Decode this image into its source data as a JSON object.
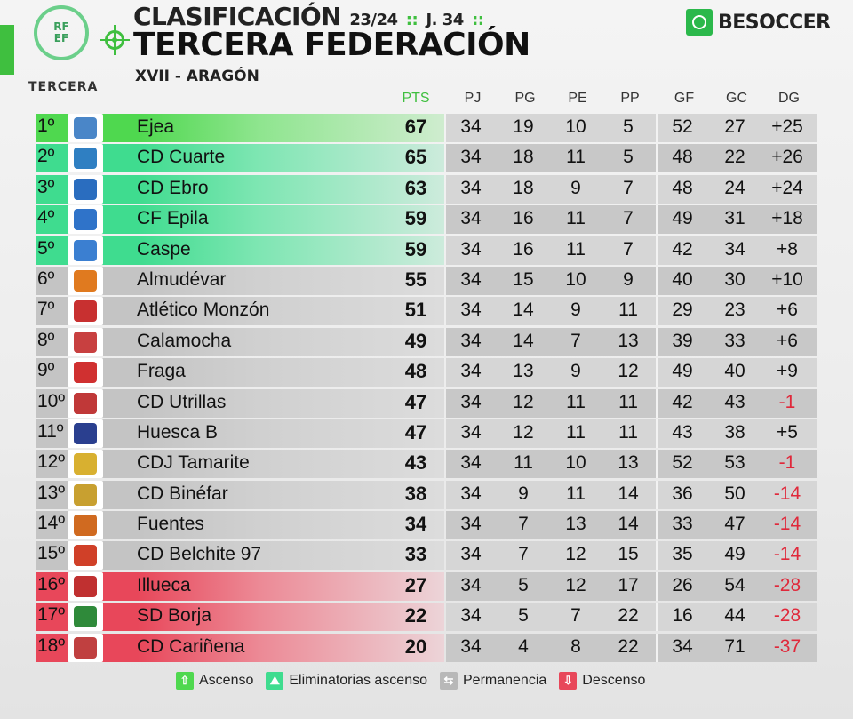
{
  "header": {
    "title_small": "CLASIFICACIÓN",
    "season": "23/24",
    "separator": "::",
    "round": "J. 34",
    "title_main": "TERCERA FEDERACIÓN",
    "group": "XVII - ARAGÓN"
  },
  "logo": {
    "line1": "RF",
    "line2": "EF",
    "caption": "TERCERA"
  },
  "brand": {
    "name": "BESOCCER",
    "icon": "besoccer-logo-icon",
    "color": "#2bb84b"
  },
  "columns": [
    "PTS",
    "PJ",
    "PG",
    "PE",
    "PP",
    "GF",
    "GC",
    "DG"
  ],
  "colors": {
    "ascenso": "#4fd84f",
    "eliminatorias": "#3fdc8f",
    "permanencia": "#b8b8b8",
    "descenso": "#e8475a",
    "negative_dg": "#e0283a"
  },
  "rows": [
    {
      "pos": "1º",
      "team": "Ejea",
      "pts": "67",
      "pj": "34",
      "pg": "19",
      "pe": "10",
      "pp": "5",
      "gf": "52",
      "gc": "27",
      "dg": "+25",
      "status": "ascenso",
      "crest": "#4a86c8"
    },
    {
      "pos": "2º",
      "team": "CD Cuarte",
      "pts": "65",
      "pj": "34",
      "pg": "18",
      "pe": "11",
      "pp": "5",
      "gf": "48",
      "gc": "22",
      "dg": "+26",
      "status": "eliminatorias",
      "crest": "#2f7fc2"
    },
    {
      "pos": "3º",
      "team": "CD Ebro",
      "pts": "63",
      "pj": "34",
      "pg": "18",
      "pe": "9",
      "pp": "7",
      "gf": "48",
      "gc": "24",
      "dg": "+24",
      "status": "eliminatorias",
      "crest": "#2a6dbf"
    },
    {
      "pos": "4º",
      "team": "CF Epila",
      "pts": "59",
      "pj": "34",
      "pg": "16",
      "pe": "11",
      "pp": "7",
      "gf": "49",
      "gc": "31",
      "dg": "+18",
      "status": "eliminatorias",
      "crest": "#2f73c9"
    },
    {
      "pos": "5º",
      "team": "Caspe",
      "pts": "59",
      "pj": "34",
      "pg": "16",
      "pe": "11",
      "pp": "7",
      "gf": "42",
      "gc": "34",
      "dg": "+8",
      "status": "eliminatorias",
      "crest": "#3b7fd1"
    },
    {
      "pos": "6º",
      "team": "Almudévar",
      "pts": "55",
      "pj": "34",
      "pg": "15",
      "pe": "10",
      "pp": "9",
      "gf": "40",
      "gc": "30",
      "dg": "+10",
      "status": "permanencia",
      "crest": "#e07a1f"
    },
    {
      "pos": "7º",
      "team": "Atlético Monzón",
      "pts": "51",
      "pj": "34",
      "pg": "14",
      "pe": "9",
      "pp": "11",
      "gf": "29",
      "gc": "23",
      "dg": "+6",
      "status": "permanencia",
      "crest": "#c83030"
    },
    {
      "pos": "8º",
      "team": "Calamocha",
      "pts": "49",
      "pj": "34",
      "pg": "14",
      "pe": "7",
      "pp": "13",
      "gf": "39",
      "gc": "33",
      "dg": "+6",
      "status": "permanencia",
      "crest": "#c84040"
    },
    {
      "pos": "9º",
      "team": "Fraga",
      "pts": "48",
      "pj": "34",
      "pg": "13",
      "pe": "9",
      "pp": "12",
      "gf": "49",
      "gc": "40",
      "dg": "+9",
      "status": "permanencia",
      "crest": "#d03030"
    },
    {
      "pos": "10º",
      "team": "CD Utrillas",
      "pts": "47",
      "pj": "34",
      "pg": "12",
      "pe": "11",
      "pp": "11",
      "gf": "42",
      "gc": "43",
      "dg": "-1",
      "status": "permanencia",
      "crest": "#c03838"
    },
    {
      "pos": "11º",
      "team": "Huesca B",
      "pts": "47",
      "pj": "34",
      "pg": "12",
      "pe": "11",
      "pp": "11",
      "gf": "43",
      "gc": "38",
      "dg": "+5",
      "status": "permanencia",
      "crest": "#2a3f8f"
    },
    {
      "pos": "12º",
      "team": "CDJ Tamarite",
      "pts": "43",
      "pj": "34",
      "pg": "11",
      "pe": "10",
      "pp": "13",
      "gf": "52",
      "gc": "53",
      "dg": "-1",
      "status": "permanencia",
      "crest": "#d8b030"
    },
    {
      "pos": "13º",
      "team": "CD Binéfar",
      "pts": "38",
      "pj": "34",
      "pg": "9",
      "pe": "11",
      "pp": "14",
      "gf": "36",
      "gc": "50",
      "dg": "-14",
      "status": "permanencia",
      "crest": "#c8a030"
    },
    {
      "pos": "14º",
      "team": "Fuentes",
      "pts": "34",
      "pj": "34",
      "pg": "7",
      "pe": "13",
      "pp": "14",
      "gf": "33",
      "gc": "47",
      "dg": "-14",
      "status": "permanencia",
      "crest": "#d06a20"
    },
    {
      "pos": "15º",
      "team": "CD Belchite 97",
      "pts": "33",
      "pj": "34",
      "pg": "7",
      "pe": "12",
      "pp": "15",
      "gf": "35",
      "gc": "49",
      "dg": "-14",
      "status": "permanencia",
      "crest": "#d04028"
    },
    {
      "pos": "16º",
      "team": "Illueca",
      "pts": "27",
      "pj": "34",
      "pg": "5",
      "pe": "12",
      "pp": "17",
      "gf": "26",
      "gc": "54",
      "dg": "-28",
      "status": "descenso",
      "crest": "#c03030"
    },
    {
      "pos": "17º",
      "team": "SD Borja",
      "pts": "22",
      "pj": "34",
      "pg": "5",
      "pe": "7",
      "pp": "22",
      "gf": "16",
      "gc": "44",
      "dg": "-28",
      "status": "descenso",
      "crest": "#2f8a3a"
    },
    {
      "pos": "18º",
      "team": "CD Cariñena",
      "pts": "20",
      "pj": "34",
      "pg": "4",
      "pe": "8",
      "pp": "22",
      "gf": "34",
      "gc": "71",
      "dg": "-37",
      "status": "descenso",
      "crest": "#c04040"
    }
  ],
  "legend": [
    {
      "label": "Ascenso",
      "icon": "arrow-up-icon",
      "status": "ascenso"
    },
    {
      "label": "Eliminatorias ascenso",
      "icon": "playoff-icon",
      "status": "eliminatorias"
    },
    {
      "label": "Permanencia",
      "icon": "swap-icon",
      "status": "permanencia"
    },
    {
      "label": "Descenso",
      "icon": "arrow-down-icon",
      "status": "descenso"
    }
  ]
}
